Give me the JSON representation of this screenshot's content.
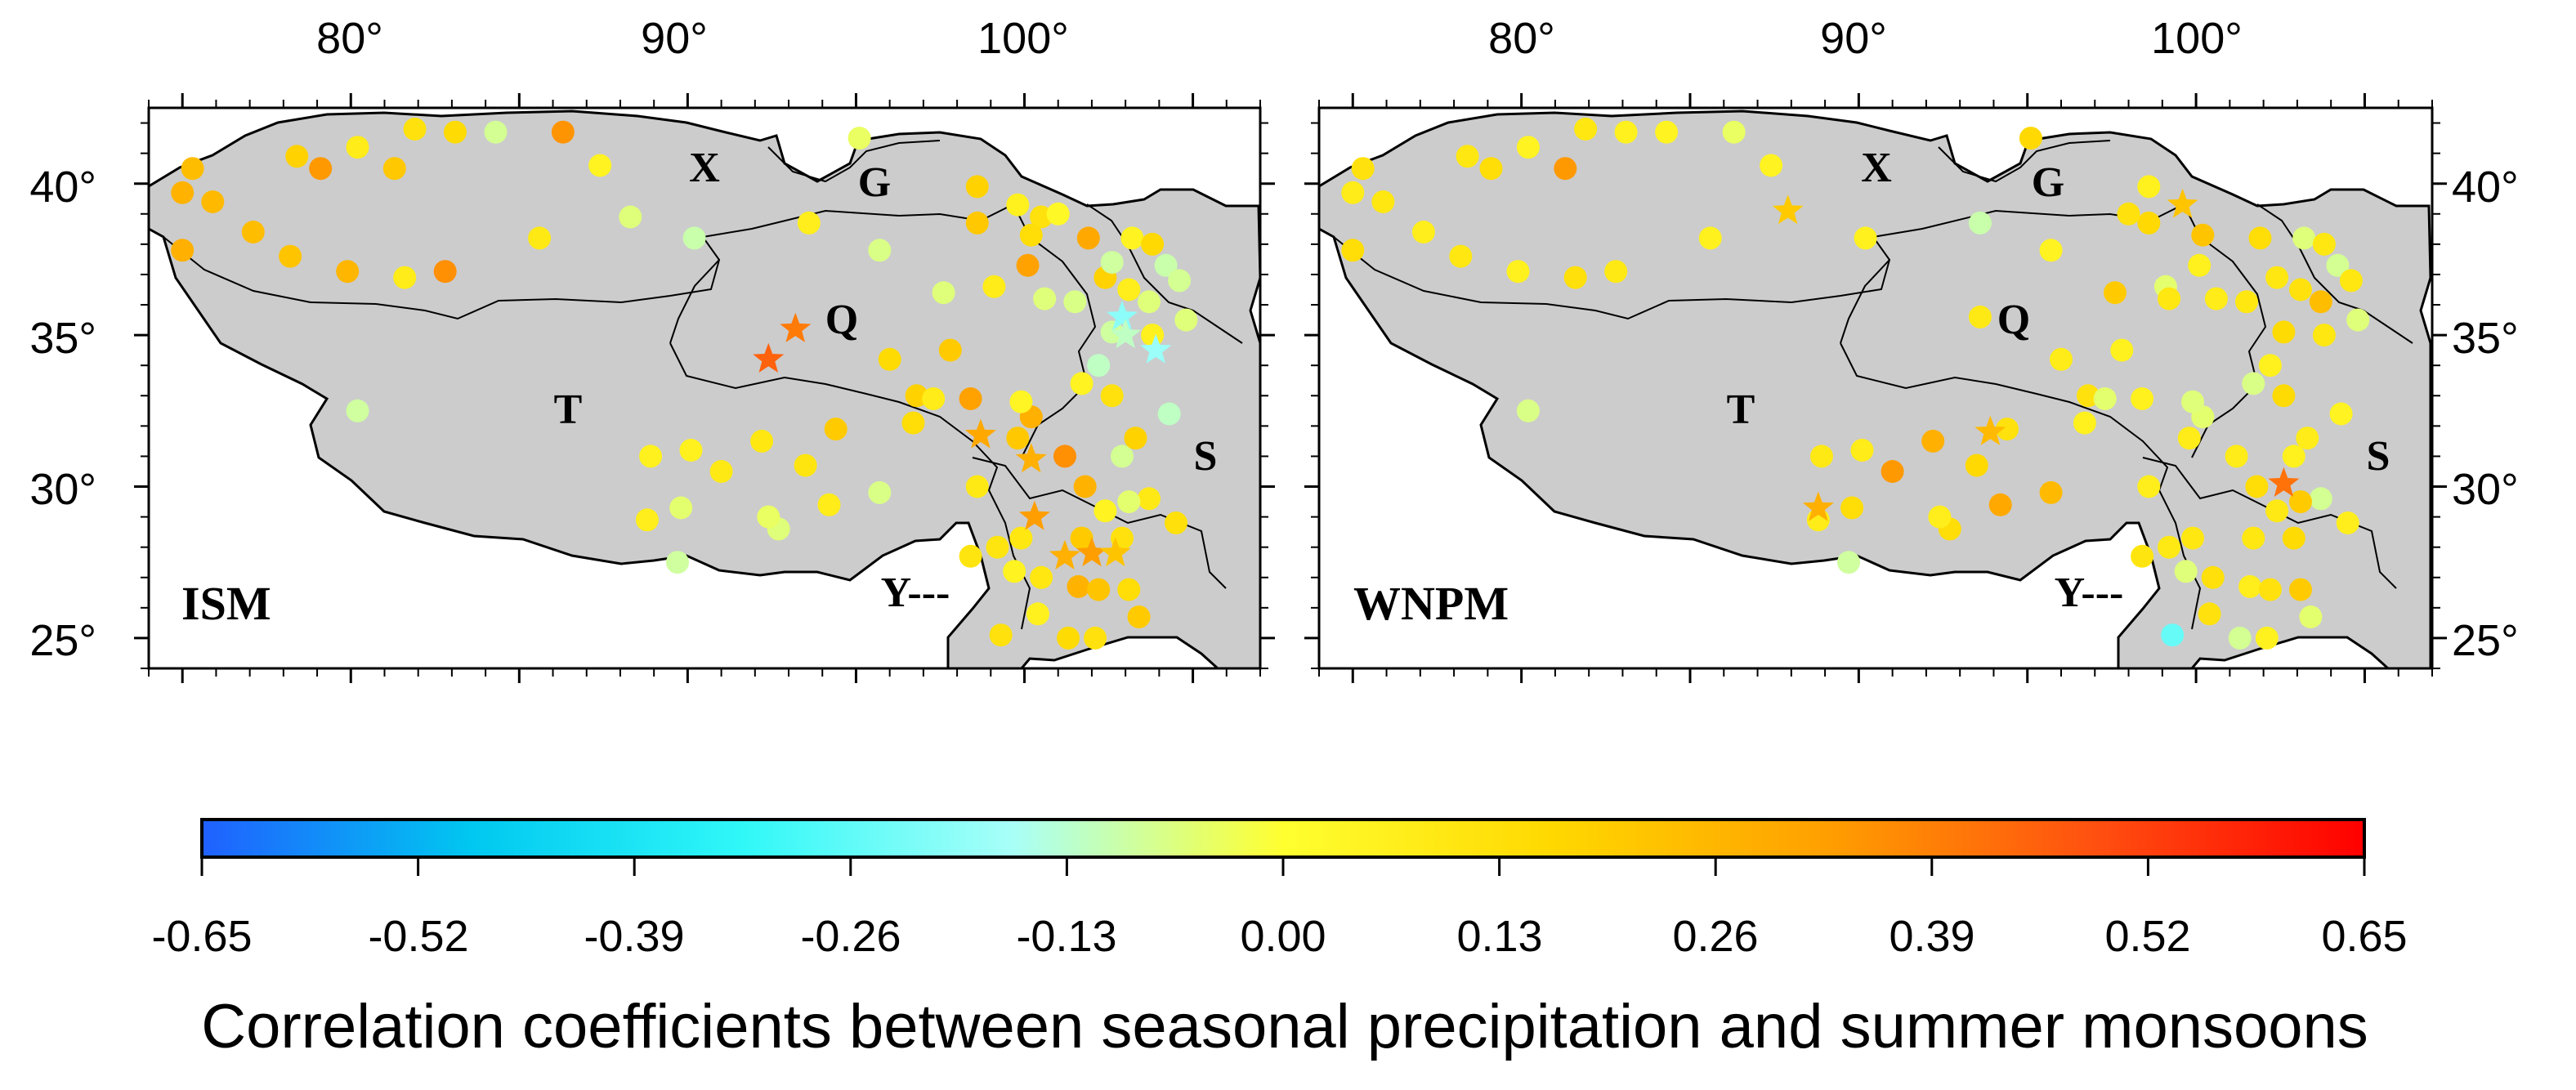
{
  "colors": {
    "land": "#cccccc",
    "border": "#000000",
    "cmap": [
      "#2060ff",
      "#00c8f0",
      "#30f8f8",
      "#a8fff8",
      "#ffff30",
      "#ffd800",
      "#ffa000",
      "#ff5010",
      "#ff0000"
    ]
  },
  "map": {
    "lon_ticks": [
      "80°",
      "90°",
      "100°"
    ],
    "lat_ticks": [
      "40°",
      "35°",
      "30°",
      "25°"
    ],
    "region_labels": [
      "X",
      "G",
      "Q",
      "T",
      "S",
      "Y---"
    ],
    "region_label_coords": [
      [
        101.0,
        40.5
      ],
      [
        96.0,
        40.0
      ],
      [
        96.0,
        35.5
      ],
      [
        87.5,
        33.0
      ],
      [
        101.5,
        31.0
      ],
      [
        96.6,
        27.7
      ]
    ],
    "lon_range": [
      74,
      107
    ],
    "lat_range": [
      24,
      42.5
    ]
  },
  "panels": [
    {
      "name": "ISM",
      "label": "ISM",
      "stations": [
        [
          75.3,
          40.5,
          0.24
        ],
        [
          75.0,
          39.7,
          0.27
        ],
        [
          75.9,
          39.4,
          0.25
        ],
        [
          75.0,
          37.8,
          0.28
        ],
        [
          77.1,
          38.4,
          0.24
        ],
        [
          78.2,
          37.6,
          0.22
        ],
        [
          78.4,
          40.9,
          0.18
        ],
        [
          79.1,
          40.5,
          0.34
        ],
        [
          79.9,
          37.1,
          0.26
        ],
        [
          80.2,
          41.2,
          0.08
        ],
        [
          81.3,
          40.5,
          0.21
        ],
        [
          81.6,
          36.9,
          0.08
        ],
        [
          82.8,
          37.1,
          0.36
        ],
        [
          81.9,
          41.8,
          0.12
        ],
        [
          83.1,
          41.7,
          0.15
        ],
        [
          84.3,
          41.7,
          -0.08
        ],
        [
          86.3,
          41.7,
          0.35
        ],
        [
          87.4,
          40.6,
          0.05
        ],
        [
          88.3,
          38.9,
          -0.06
        ],
        [
          85.6,
          38.2,
          0.09
        ],
        [
          90.2,
          38.2,
          -0.1
        ],
        [
          93.6,
          38.7,
          0.07
        ],
        [
          95.1,
          41.5,
          -0.04
        ],
        [
          95.7,
          37.8,
          -0.07
        ],
        [
          97.6,
          36.4,
          -0.06
        ],
        [
          98.6,
          38.7,
          0.21
        ],
        [
          98.6,
          39.9,
          0.18
        ],
        [
          99.8,
          39.3,
          0.06
        ],
        [
          100.5,
          38.9,
          0.12
        ],
        [
          101.0,
          39.0,
          0.03
        ],
        [
          100.2,
          38.3,
          0.14
        ],
        [
          101.9,
          38.2,
          0.3
        ],
        [
          99.1,
          36.6,
          0.08
        ],
        [
          100.1,
          37.3,
          0.32
        ],
        [
          100.6,
          36.2,
          -0.06
        ],
        [
          101.5,
          36.1,
          -0.07
        ],
        [
          102.4,
          36.9,
          0.18
        ],
        [
          102.6,
          37.4,
          -0.09
        ],
        [
          103.1,
          36.5,
          0.07
        ],
        [
          103.7,
          36.1,
          -0.06
        ],
        [
          103.2,
          38.2,
          0.05
        ],
        [
          103.8,
          38.0,
          0.16
        ],
        [
          104.2,
          37.3,
          -0.1
        ],
        [
          104.6,
          36.8,
          -0.08
        ],
        [
          104.8,
          35.5,
          -0.06
        ],
        [
          102.6,
          35.1,
          -0.09
        ],
        [
          103.8,
          35.0,
          0.06
        ],
        [
          102.2,
          34.0,
          -0.12
        ],
        [
          101.7,
          33.4,
          0.05
        ],
        [
          102.6,
          33.0,
          0.12
        ],
        [
          104.3,
          32.4,
          -0.12
        ],
        [
          102.9,
          31.0,
          -0.08
        ],
        [
          103.3,
          31.6,
          0.18
        ],
        [
          103.7,
          29.6,
          0.09
        ],
        [
          103.1,
          29.5,
          -0.05
        ],
        [
          104.5,
          28.8,
          0.13
        ],
        [
          101.8,
          30.0,
          0.27
        ],
        [
          99.8,
          31.6,
          0.21
        ],
        [
          100.2,
          32.3,
          0.28
        ],
        [
          101.2,
          31.0,
          0.36
        ],
        [
          98.6,
          30.0,
          0.09
        ],
        [
          96.8,
          33.0,
          0.18
        ],
        [
          98.4,
          32.9,
          0.32
        ],
        [
          97.3,
          32.9,
          0.08
        ],
        [
          97.8,
          34.5,
          0.2
        ],
        [
          96.0,
          34.2,
          0.15
        ],
        [
          96.7,
          32.1,
          0.14
        ],
        [
          94.4,
          31.9,
          0.2
        ],
        [
          95.7,
          29.8,
          -0.07
        ],
        [
          94.2,
          29.4,
          0.08
        ],
        [
          93.5,
          30.7,
          0.11
        ],
        [
          92.2,
          31.5,
          0.1
        ],
        [
          90.1,
          31.2,
          0.06
        ],
        [
          91.0,
          30.5,
          0.09
        ],
        [
          88.9,
          31.0,
          0.06
        ],
        [
          88.8,
          28.9,
          0.07
        ],
        [
          89.8,
          29.3,
          -0.05
        ],
        [
          89.7,
          27.5,
          -0.09
        ],
        [
          92.7,
          28.6,
          -0.06
        ],
        [
          92.4,
          29.0,
          -0.04
        ],
        [
          80.2,
          32.5,
          -0.09
        ],
        [
          99.9,
          32.8,
          0.04
        ],
        [
          98.4,
          27.7,
          0.11
        ],
        [
          99.2,
          28.0,
          0.11
        ],
        [
          99.9,
          28.3,
          0.1
        ],
        [
          99.7,
          27.2,
          0.05
        ],
        [
          100.5,
          27.0,
          0.1
        ],
        [
          101.6,
          26.7,
          0.27
        ],
        [
          102.2,
          26.6,
          0.22
        ],
        [
          103.1,
          26.6,
          0.14
        ],
        [
          103.4,
          25.7,
          0.2
        ],
        [
          101.3,
          25.0,
          0.15
        ],
        [
          99.3,
          25.1,
          0.12
        ],
        [
          102.1,
          25.0,
          0.12
        ],
        [
          100.4,
          25.8,
          0.06
        ],
        [
          101.7,
          28.3,
          0.2
        ],
        [
          102.4,
          29.2,
          0.05
        ],
        [
          102.9,
          28.3,
          0.12
        ]
      ],
      "stars": [
        [
          92.4,
          34.2,
          0.45
        ],
        [
          93.2,
          35.2,
          0.4
        ],
        [
          98.7,
          31.7,
          0.3
        ],
        [
          100.2,
          30.9,
          0.28
        ],
        [
          100.3,
          29.0,
          0.33
        ],
        [
          101.2,
          27.7,
          0.28
        ],
        [
          102.0,
          27.8,
          0.33
        ],
        [
          102.7,
          27.8,
          0.22
        ],
        [
          102.9,
          35.6,
          -0.2
        ],
        [
          103.9,
          34.5,
          -0.18
        ],
        [
          103.0,
          35.0,
          -0.12
        ]
      ]
    },
    {
      "name": "WNPM",
      "label": "WNPM",
      "stations": [
        [
          75.3,
          40.5,
          0.12
        ],
        [
          75.0,
          39.7,
          0.08
        ],
        [
          75.9,
          39.4,
          0.1
        ],
        [
          75.0,
          37.8,
          0.14
        ],
        [
          77.1,
          38.4,
          0.07
        ],
        [
          78.2,
          37.6,
          0.1
        ],
        [
          78.4,
          40.9,
          0.1
        ],
        [
          79.1,
          40.5,
          0.14
        ],
        [
          79.9,
          37.1,
          0.06
        ],
        [
          80.2,
          41.2,
          0.05
        ],
        [
          81.3,
          40.5,
          0.34
        ],
        [
          81.6,
          36.9,
          0.13
        ],
        [
          82.8,
          37.1,
          0.09
        ],
        [
          81.9,
          41.8,
          0.1
        ],
        [
          83.1,
          41.7,
          0.06
        ],
        [
          84.3,
          41.7,
          0.05
        ],
        [
          86.3,
          41.7,
          -0.04
        ],
        [
          87.4,
          40.6,
          0.05
        ],
        [
          85.6,
          38.2,
          0.06
        ],
        [
          90.2,
          38.2,
          0.06
        ],
        [
          93.6,
          38.7,
          -0.1
        ],
        [
          95.1,
          41.5,
          0.16
        ],
        [
          95.7,
          37.8,
          0.05
        ],
        [
          97.6,
          36.4,
          0.2
        ],
        [
          98.6,
          38.7,
          0.16
        ],
        [
          98.6,
          39.9,
          0.06
        ],
        [
          100.2,
          38.3,
          0.22
        ],
        [
          101.9,
          38.2,
          0.14
        ],
        [
          99.1,
          36.6,
          -0.05
        ],
        [
          100.1,
          37.3,
          0.06
        ],
        [
          100.6,
          36.2,
          0.08
        ],
        [
          101.5,
          36.1,
          0.1
        ],
        [
          102.4,
          36.9,
          0.1
        ],
        [
          103.1,
          36.5,
          0.12
        ],
        [
          103.7,
          36.1,
          0.24
        ],
        [
          103.2,
          38.2,
          -0.06
        ],
        [
          103.8,
          38.0,
          0.1
        ],
        [
          104.2,
          37.3,
          -0.08
        ],
        [
          104.6,
          36.8,
          0.1
        ],
        [
          104.8,
          35.5,
          -0.06
        ],
        [
          102.6,
          35.1,
          0.15
        ],
        [
          103.8,
          35.0,
          0.1
        ],
        [
          102.2,
          34.0,
          0.06
        ],
        [
          101.7,
          33.4,
          -0.07
        ],
        [
          102.6,
          33.0,
          0.15
        ],
        [
          104.3,
          32.4,
          0.05
        ],
        [
          102.9,
          31.0,
          0.06
        ],
        [
          103.3,
          31.6,
          0.08
        ],
        [
          103.7,
          29.6,
          -0.08
        ],
        [
          103.1,
          29.5,
          0.2
        ],
        [
          104.5,
          28.8,
          0.07
        ],
        [
          101.8,
          30.0,
          0.14
        ],
        [
          99.8,
          31.6,
          0.08
        ],
        [
          100.2,
          32.3,
          -0.05
        ],
        [
          101.2,
          31.0,
          0.08
        ],
        [
          98.6,
          30.0,
          0.07
        ],
        [
          96.8,
          33.0,
          0.12
        ],
        [
          98.4,
          32.9,
          0.06
        ],
        [
          97.3,
          32.9,
          -0.05
        ],
        [
          97.8,
          34.5,
          0.06
        ],
        [
          96.0,
          34.2,
          0.08
        ],
        [
          96.7,
          32.1,
          0.06
        ],
        [
          94.4,
          31.9,
          0.12
        ],
        [
          95.7,
          29.8,
          0.25
        ],
        [
          94.2,
          29.4,
          0.3
        ],
        [
          93.5,
          30.7,
          0.16
        ],
        [
          92.2,
          31.5,
          0.28
        ],
        [
          90.1,
          31.2,
          0.08
        ],
        [
          91.0,
          30.5,
          0.34
        ],
        [
          88.9,
          31.0,
          0.09
        ],
        [
          88.8,
          28.9,
          0.08
        ],
        [
          89.8,
          29.3,
          0.14
        ],
        [
          89.7,
          27.5,
          -0.09
        ],
        [
          92.7,
          28.6,
          0.14
        ],
        [
          92.4,
          29.0,
          0.07
        ],
        [
          80.2,
          32.5,
          -0.07
        ],
        [
          99.9,
          32.8,
          -0.06
        ],
        [
          98.4,
          27.7,
          0.11
        ],
        [
          99.2,
          28.0,
          0.09
        ],
        [
          99.9,
          28.3,
          0.1
        ],
        [
          99.7,
          27.2,
          -0.06
        ],
        [
          100.5,
          27.0,
          0.13
        ],
        [
          101.6,
          26.7,
          0.07
        ],
        [
          102.2,
          26.6,
          0.12
        ],
        [
          103.1,
          26.6,
          0.2
        ],
        [
          103.4,
          25.7,
          -0.05
        ],
        [
          101.3,
          25.0,
          -0.08
        ],
        [
          99.3,
          25.1,
          -0.25
        ],
        [
          102.1,
          25.0,
          0.06
        ],
        [
          100.4,
          25.8,
          0.12
        ],
        [
          101.7,
          28.3,
          0.1
        ],
        [
          102.4,
          29.2,
          0.09
        ],
        [
          102.9,
          28.3,
          0.15
        ],
        [
          98.0,
          39.0,
          0.12
        ],
        [
          99.2,
          36.2,
          0.1
        ],
        [
          93.6,
          35.6,
          0.09
        ]
      ],
      "stars": [
        [
          87.9,
          39.1,
          0.2
        ],
        [
          88.8,
          29.3,
          0.28
        ],
        [
          93.9,
          31.8,
          0.25
        ],
        [
          99.6,
          39.3,
          0.22
        ],
        [
          102.6,
          30.1,
          0.42
        ]
      ]
    }
  ],
  "colorbar": {
    "ticks": [
      "-0.65",
      "-0.52",
      "-0.39",
      "-0.26",
      "-0.13",
      "0.00",
      "0.13",
      "0.26",
      "0.39",
      "0.52",
      "0.65"
    ],
    "range": [
      -0.65,
      0.65
    ],
    "title": "Correlation coefficients between seasonal precipitation and summer monsoons"
  }
}
